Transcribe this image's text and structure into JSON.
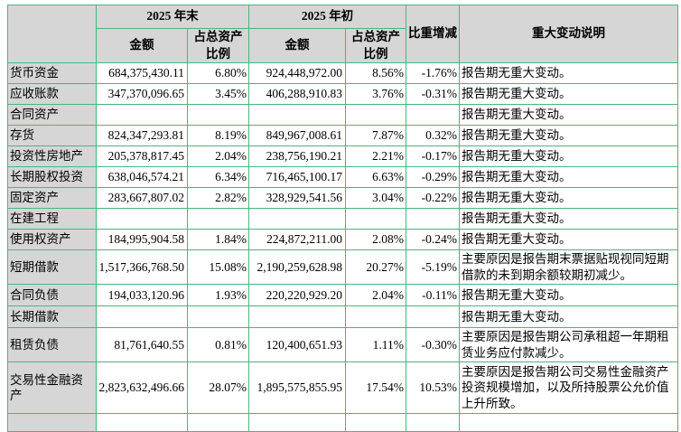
{
  "table": {
    "header": {
      "corner": "",
      "period_end": "2025 年末",
      "period_begin": "2025 年初",
      "amount": "金额",
      "ratio": "占总资产比例",
      "change": "比重增减",
      "note": "重大变动说明"
    },
    "border_color": "#4db47d",
    "header_bg_color": "#d6d6d6",
    "rows": [
      {
        "label": "货币资金",
        "end_amount": "684,375,430.11",
        "end_ratio": "6.80%",
        "begin_amount": "924,448,972.00",
        "begin_ratio": "8.56%",
        "change": "-1.76%",
        "note": "报告期无重大变动。"
      },
      {
        "label": "应收账款",
        "end_amount": "347,370,096.65",
        "end_ratio": "3.45%",
        "begin_amount": "406,288,910.83",
        "begin_ratio": "3.76%",
        "change": "-0.31%",
        "note": "报告期无重大变动。"
      },
      {
        "label": "合同资产",
        "end_amount": "",
        "end_ratio": "",
        "begin_amount": "",
        "begin_ratio": "",
        "change": "",
        "note": "报告期无重大变动。"
      },
      {
        "label": "存货",
        "end_amount": "824,347,293.81",
        "end_ratio": "8.19%",
        "begin_amount": "849,967,008.61",
        "begin_ratio": "7.87%",
        "change": "0.32%",
        "note": "报告期无重大变动。"
      },
      {
        "label": "投资性房地产",
        "end_amount": "205,378,817.45",
        "end_ratio": "2.04%",
        "begin_amount": "238,756,190.21",
        "begin_ratio": "2.21%",
        "change": "-0.17%",
        "note": "报告期无重大变动。"
      },
      {
        "label": "长期股权投资",
        "end_amount": "638,046,574.21",
        "end_ratio": "6.34%",
        "begin_amount": "716,465,100.17",
        "begin_ratio": "6.63%",
        "change": "-0.29%",
        "note": "报告期无重大变动。"
      },
      {
        "label": "固定资产",
        "end_amount": "283,667,807.02",
        "end_ratio": "2.82%",
        "begin_amount": "328,929,541.56",
        "begin_ratio": "3.04%",
        "change": "-0.22%",
        "note": "报告期无重大变动。"
      },
      {
        "label": "在建工程",
        "end_amount": "",
        "end_ratio": "",
        "begin_amount": "",
        "begin_ratio": "",
        "change": "",
        "note": "报告期无重大变动。"
      },
      {
        "label": "使用权资产",
        "end_amount": "184,995,904.58",
        "end_ratio": "1.84%",
        "begin_amount": "224,872,211.00",
        "begin_ratio": "2.08%",
        "change": "-0.24%",
        "note": "报告期无重大变动。"
      },
      {
        "label": "短期借款",
        "end_amount": "1,517,366,768.50",
        "end_ratio": "15.08%",
        "begin_amount": "2,190,259,628.98",
        "begin_ratio": "20.27%",
        "change": "-5.19%",
        "note": "主要原因是报告期末票据贴现视同短期借款的未到期余额较期初减少。"
      },
      {
        "label": "合同负债",
        "end_amount": "194,033,120.96",
        "end_ratio": "1.93%",
        "begin_amount": "220,220,929.20",
        "begin_ratio": "2.04%",
        "change": "-0.11%",
        "note": "报告期无重大变动。"
      },
      {
        "label": "长期借款",
        "end_amount": "",
        "end_ratio": "",
        "begin_amount": "",
        "begin_ratio": "",
        "change": "",
        "note": "报告期无重大变动。"
      },
      {
        "label": "租赁负债",
        "end_amount": "81,761,640.55",
        "end_ratio": "0.81%",
        "begin_amount": "120,400,651.93",
        "begin_ratio": "1.11%",
        "change": "-0.30%",
        "note": "主要原因是报告期公司承租超一年期租赁业务应付款减少。"
      },
      {
        "label": "交易性金融资产",
        "end_amount": "2,823,632,496.66",
        "end_ratio": "28.07%",
        "begin_amount": "1,895,575,855.95",
        "begin_ratio": "17.54%",
        "change": "10.53%",
        "note": "主要原因是报告期公司交易性金融资产投资规模增加，以及所持股票公允价值上升所致。"
      },
      {
        "label": "",
        "end_amount": "",
        "end_ratio": "",
        "begin_amount": "",
        "begin_ratio": "",
        "change": "",
        "note": ""
      }
    ]
  }
}
